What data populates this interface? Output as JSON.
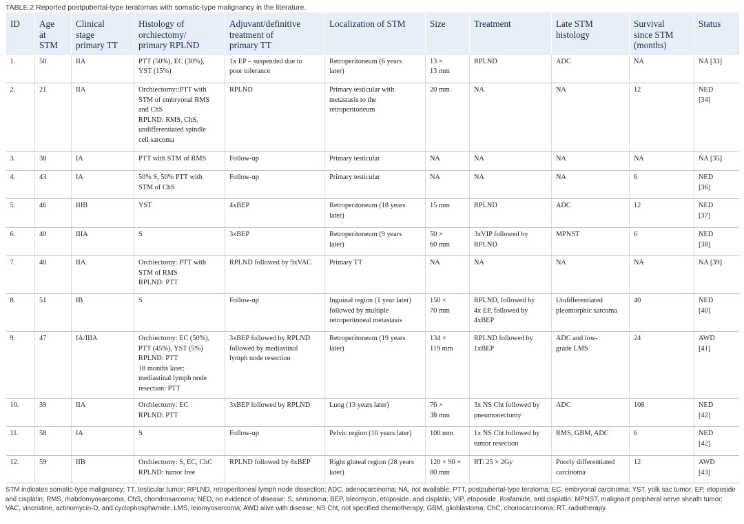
{
  "caption": "TABLE 2 Reported postpubertal-type teratomas with somatic-type malignancy in the literature.",
  "columns": [
    "ID",
    "Age\nat\nSTM",
    "Clinical\nstage\nprimary TT",
    "Histology of\norchiectomy/\nprimary RPLND",
    "Adjuvant/definitive\ntreatment of\nprimary TT",
    "Localization of STM",
    "Size",
    "Treatment",
    "Late STM\nhistology",
    "Survival\nsince STM\n(months)",
    "Status"
  ],
  "rows": [
    [
      "1.",
      "50",
      "IIA",
      "PTT (50%), EC (30%),\nYST (15%)",
      "1x EP – suspended due to\npoor tolerance",
      "Retroperitoneum (6 years\nlater)",
      "13 ×\n13 mm",
      "RPLND",
      "ADC",
      "NA",
      "NA [33]"
    ],
    [
      "2.",
      "21",
      "IIA",
      "Orchiectomy::PTT with\nSTM of embryonal RMS\nand ChS\nRPLND: RMS, ChS,\nundifferentiated spindle\ncell sarcoma",
      "RPLND",
      "Primary testicular with\nmetastasis to the\nretroperitoneum",
      "20 mm",
      "NA",
      "NA",
      "12",
      "NED\n[34]"
    ],
    [
      "3.",
      "38",
      "IA",
      "PTT with STM of RMS",
      "Follow-up",
      "Primary testicular",
      "NA",
      "NA",
      "NA",
      "NA",
      "NA [35]"
    ],
    [
      "4.",
      "43",
      "IA",
      "50% S, 50% PTT with\nSTM of ChS",
      "Follow-up",
      "Primary testicular",
      "NA",
      "NA",
      "NA",
      "6",
      "NED\n[36]"
    ],
    [
      "5.",
      "46",
      "IIIB",
      "YST",
      "4xBEP",
      "Retroperitoneum (18 years\nlater)",
      "15 mm",
      "RPLND",
      "ADC",
      "12",
      "NED\n[37]"
    ],
    [
      "6.",
      "40",
      "IIIA",
      "S",
      "3xBEP",
      "Retroperitoneum (9 years\nlater)",
      "50 ×\n60 mm",
      "3xVIP followed by\nRPLND",
      "MPNST",
      "6",
      "NED\n[38]"
    ],
    [
      "7.",
      "40",
      "IIA",
      "Orchiectomy: PTT with\nSTM of RMS\nRPLND: PTT",
      "RPLND followed by 9xVAC",
      "Primary TT",
      "NA",
      "NA",
      "NA",
      "NA",
      "NA [39]"
    ],
    [
      "8.",
      "51",
      "IB",
      "S",
      "Follow-up",
      "Inguinal region (1 year later)\nfollowed by multiple\nretroperitoneal metastasis",
      "150 ×\n70 mm",
      "RPLND, followed by\n4x EP, followed by\n4xBEP",
      "Undifferentiated\npleomorphic sarcoma",
      "40",
      "NED\n[40]"
    ],
    [
      "9.",
      "47",
      "IA/IIIA",
      "Orchiectomy: EC (50%),\nPTT (45%), YST (5%)\nRPLND: PTT\n18 months later:\nmediastinal lymph node\nresection: PTT",
      "3xBEP followed by RPLND\nfollowed by mediastinal\nlymph node resection",
      "Retroperitoneum (19 years\nlater)",
      "134 ×\n119 mm",
      "RPLND followed by\n1xBEP",
      "ADC and low-\ngrade LMS",
      "24",
      "AWD\n[41]"
    ],
    [
      "10.",
      "39",
      "IIA",
      "Orchiectomy: EC\nRPLND: PTT",
      "3xBEP followed by RPLND",
      "Lung (13 years later)",
      "76 ×\n38 mm",
      "3x NS Cht followed by\npneumonectomy",
      "ADC",
      "108",
      "NED\n[42]"
    ],
    [
      "11.",
      "58",
      "IA",
      "S",
      "Follow-up",
      "Pelvic region (10 years later)",
      "100 mm",
      "1x NS Cht followed by\ntumor resection",
      "RMS, GBM, ADC",
      "6",
      "NED\n[42]"
    ],
    [
      "12.",
      "59",
      "IIB",
      "Orchiectomy: S, EC, ChC\nRPLND: tumor free",
      "RPLND followed by 8xBEP",
      "Right gluteal region (28 years\nlater)",
      "120 × 90 ×\n80 mm",
      "RT: 25 × 2Gy",
      "Poorly differentiated\ncarcinoma",
      "12",
      "AWD\n[43]"
    ]
  ],
  "footnote": "STM indicates somatic-type malignancy; TT, testicular tumor; RPLND, retroperitoneal lymph node dissection; ADC, adenocarcinoma; NA, not available; PTT, postpubertal-type teratoma; EC, embryonal carcinoma; YST, yolk sac tumor; EP, etoposide and cisplatin; RMS, rhabdomyosarcoma, ChS, chondrosarcoma; NED, no evidence of disease; S, seminoma; BEP, bleomycin, etoposide, and cisplatin; VIP, etoposide, ifosfamide, and cisplatin; MPNST, malignant peripheral nerve sheath tumor; VAC, vincristine, actinomycin-D, and cyclophosphamide; LMS, leiomyosarcoma; AWD alive with disease; NS Cht, not specified chemotherapy; GBM, glioblastoma; ChC, choriocarcinoma; RT, radiotherapy."
}
